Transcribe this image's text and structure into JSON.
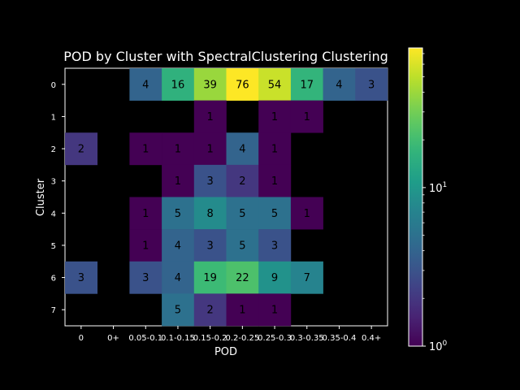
{
  "chart_data": {
    "type": "heatmap",
    "title": "POD by Cluster with SpectralClustering Clustering",
    "xlabel": "POD",
    "ylabel": "Cluster",
    "x_categories": [
      "0",
      "0+",
      "0.05-0.1",
      "0.1-0.15",
      "0.15-0.2",
      "0.2-0.25",
      "0.25-0.3",
      "0.3-0.35",
      "0.35-0.4",
      "0.4+"
    ],
    "x_tick_labels": [
      "0",
      "0+",
      "0.05-0.1",
      "0.1-0.15",
      "0.15-0.2",
      "0.2-0.25",
      "0.25-0.3",
      "0.3-0.35",
      "0.35-0.4",
      "0.4+"
    ],
    "y_categories": [
      "0",
      "1",
      "2",
      "3",
      "4",
      "5",
      "6",
      "7"
    ],
    "values": [
      [
        null,
        null,
        4,
        16,
        39,
        76,
        54,
        17,
        4,
        3
      ],
      [
        null,
        null,
        null,
        null,
        1,
        null,
        1,
        1,
        null,
        null
      ],
      [
        2,
        null,
        1,
        1,
        1,
        4,
        1,
        null,
        null,
        null
      ],
      [
        null,
        null,
        null,
        1,
        3,
        2,
        1,
        null,
        null,
        null
      ],
      [
        null,
        null,
        1,
        5,
        8,
        5,
        5,
        1,
        null,
        null
      ],
      [
        null,
        null,
        1,
        4,
        3,
        5,
        3,
        null,
        null,
        null
      ],
      [
        3,
        null,
        3,
        4,
        19,
        22,
        9,
        7,
        null,
        null
      ],
      [
        null,
        null,
        null,
        5,
        2,
        1,
        1,
        null,
        null,
        null
      ]
    ],
    "colorbar": {
      "scale": "log",
      "colormap": "viridis",
      "min": 1,
      "max": 76,
      "tick_values": [
        1,
        10
      ],
      "tick_base": "10",
      "tick_exponents": [
        "0",
        "1"
      ]
    },
    "background_color": "#000000",
    "grid": false
  }
}
